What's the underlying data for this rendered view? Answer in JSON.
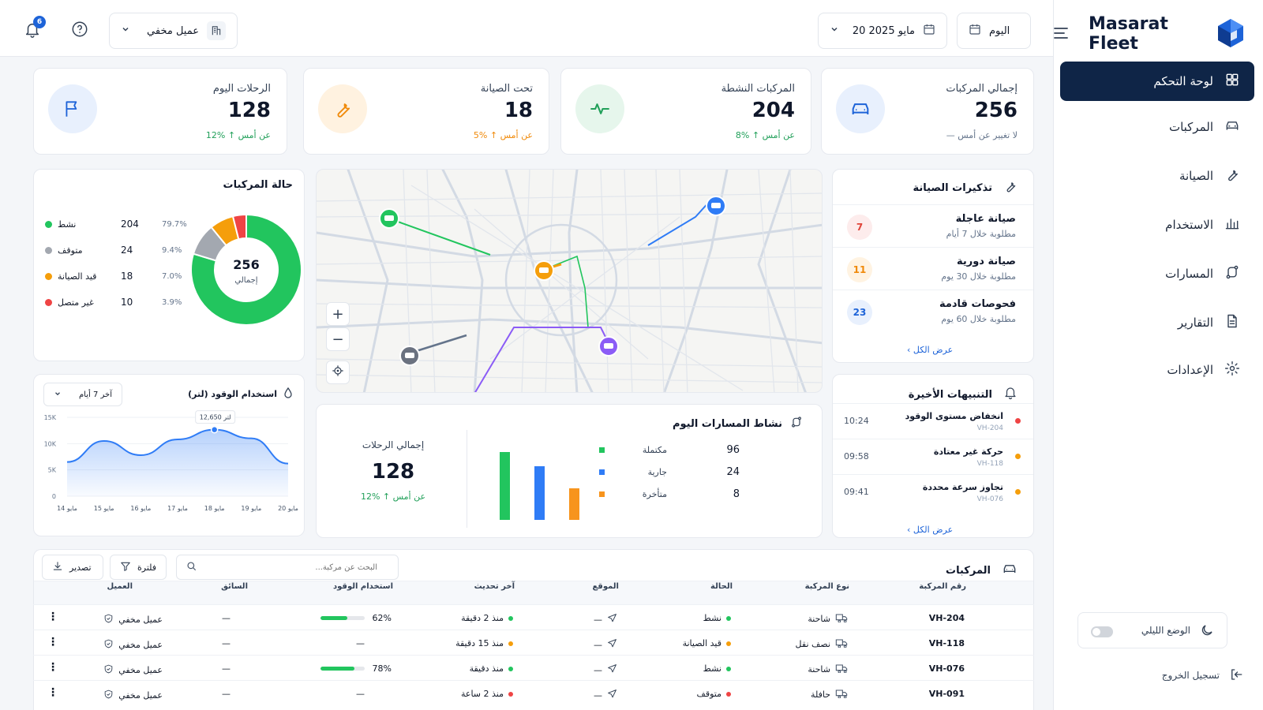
{
  "brand": {
    "name": "Masarat Fleet"
  },
  "sidebar": {
    "items": [
      {
        "label": "لوحة التحكم",
        "icon": "dashboard-icon"
      },
      {
        "label": "المركبات",
        "icon": "car-icon"
      },
      {
        "label": "الصيانة",
        "icon": "wrench-icon"
      },
      {
        "label": "الاستخدام",
        "icon": "bar-chart-icon"
      },
      {
        "label": "المسارات",
        "icon": "route-icon"
      },
      {
        "label": "التقارير",
        "icon": "document-icon"
      },
      {
        "label": "الإعدادات",
        "icon": "gear-icon"
      }
    ],
    "dark_mode_label": "الوضع الليلي",
    "logout_label": "تسجيل الخروج"
  },
  "topbar": {
    "period_label": "اليوم",
    "date_label": "20 مايو 2025",
    "client_label": "عميل مخفي",
    "notifications_count": "6"
  },
  "kpis": [
    {
      "label": "إجمالي المركبات",
      "value": "256",
      "delta": "— لا تغيير عن أمس",
      "tone": "gray"
    },
    {
      "label": "المركبات النشطة",
      "value": "204",
      "delta": "8% ↑ عن أمس",
      "tone": "green"
    },
    {
      "label": "تحت الصيانة",
      "value": "18",
      "delta": "5% ↑ عن أمس",
      "tone": "orange"
    },
    {
      "label": "الرحلات اليوم",
      "value": "128",
      "delta": "12% ↑ عن أمس",
      "tone": "green"
    }
  ],
  "vehicle_status": {
    "title": "حالة المركبات",
    "total_value": "256",
    "total_label": "إجمالي",
    "items": [
      {
        "label": "نشط",
        "count": "204",
        "pct": "79.7%",
        "value": 204,
        "color": "#22c55e"
      },
      {
        "label": "متوقف",
        "count": "24",
        "pct": "9.4%",
        "value": 24,
        "color": "#a3a8b0"
      },
      {
        "label": "قيد الصيانة",
        "count": "18",
        "pct": "7.0%",
        "value": 18,
        "color": "#f59e0b"
      },
      {
        "label": "غير متصل",
        "count": "10",
        "pct": "3.9%",
        "value": 10,
        "color": "#ef4444"
      }
    ]
  },
  "fuel": {
    "title": "استخدام الوقود (لتر)",
    "filter_label": "آخر 7 أيام",
    "tooltip": "12,650 لتر",
    "y_ticks": [
      "15K",
      "10K",
      "5K",
      "0"
    ],
    "x_ticks": [
      "14 مايو",
      "15 مايو",
      "16 مايو",
      "17 مايو",
      "18 مايو",
      "19 مايو",
      "20 مايو"
    ]
  },
  "chart_data": [
    {
      "type": "pie",
      "title": "حالة المركبات",
      "categories": [
        "نشط",
        "متوقف",
        "قيد الصيانة",
        "غير متصل"
      ],
      "values": [
        204,
        24,
        18,
        10
      ],
      "colors": [
        "#22c55e",
        "#a3a8b0",
        "#f59e0b",
        "#ef4444"
      ]
    },
    {
      "type": "area",
      "title": "استخدام الوقود (لتر)",
      "categories": [
        "14 مايو",
        "15 مايو",
        "16 مايو",
        "17 مايو",
        "18 مايو",
        "19 مايو",
        "20 مايو"
      ],
      "values": [
        6500,
        10500,
        7800,
        10800,
        12650,
        11000,
        6200
      ],
      "ylim": [
        0,
        15000
      ],
      "yticks": [
        0,
        5000,
        10000,
        15000
      ],
      "grid": true
    },
    {
      "type": "bar",
      "title": "نشاط المسارات اليوم",
      "categories": [
        "مكتملة",
        "جارية",
        "متأخرة"
      ],
      "values": [
        96,
        24,
        8
      ],
      "colors": [
        "#22c55e",
        "#2f7cf6",
        "#f7941d"
      ]
    }
  ],
  "route_activity": {
    "title": "نشاط المسارات اليوم",
    "total_label": "إجمالي الرحلات",
    "total_value": "128",
    "delta": "12% ↑ عن أمس",
    "items": [
      {
        "label": "مكتملة",
        "value": "96",
        "color": "#22c55e"
      },
      {
        "label": "جارية",
        "value": "24",
        "color": "#2f7cf6"
      },
      {
        "label": "متأخرة",
        "value": "8",
        "color": "#f7941d"
      }
    ]
  },
  "maintenance": {
    "title": "تذكيرات الصيانة",
    "items": [
      {
        "title": "صيانة عاجلة",
        "sub": "مطلوبة خلال 7 أيام",
        "count": "7",
        "bg": "#fdecec",
        "fg": "#e0453a"
      },
      {
        "title": "صيانة دورية",
        "sub": "مطلوبة خلال 30 يوم",
        "count": "11",
        "bg": "#fff3e2",
        "fg": "#f08a0a"
      },
      {
        "title": "فحوصات قادمة",
        "sub": "مطلوبة خلال 60 يوم",
        "count": "23",
        "bg": "#e8f0fd",
        "fg": "#1d63d8"
      }
    ],
    "view_all": "عرض الكل"
  },
  "alerts": {
    "title": "التنبيهات الأخيرة",
    "items": [
      {
        "title": "انخفاض مستوى الوقود",
        "vehicle": "VH-204",
        "time": "10:24",
        "color": "#ef4444"
      },
      {
        "title": "حركة غير معتادة",
        "vehicle": "VH-118",
        "time": "09:58",
        "color": "#f59e0b"
      },
      {
        "title": "تجاوز سرعة محددة",
        "vehicle": "VH-076",
        "time": "09:41",
        "color": "#f59e0b"
      }
    ],
    "view_all": "عرض الكل"
  },
  "vehicles_table": {
    "title": "المركبات",
    "search_placeholder": "البحث عن مركبة...",
    "filter_label": "فلترة",
    "export_label": "تصدير",
    "columns": [
      "رقم المركبة",
      "نوع المركبة",
      "الحالة",
      "الموقع",
      "آخر تحديث",
      "استخدام الوقود",
      "السائق",
      "العميل"
    ],
    "rows": [
      {
        "id": "VH-204",
        "type": "شاحنة",
        "status": "نشط",
        "status_color": "#22c55e",
        "location": "—",
        "updated": "منذ 2 دقيقة",
        "updated_color": "#22c55e",
        "fuel": "62%",
        "fuel_value": 62,
        "driver": "—",
        "client": "عميل مخفي"
      },
      {
        "id": "VH-118",
        "type": "نصف نقل",
        "status": "قيد الصيانة",
        "status_color": "#f59e0b",
        "location": "—",
        "updated": "منذ 15 دقيقة",
        "updated_color": "#f59e0b",
        "fuel": "—",
        "fuel_value": null,
        "driver": "—",
        "client": "عميل مخفي"
      },
      {
        "id": "VH-076",
        "type": "شاحنة",
        "status": "نشط",
        "status_color": "#22c55e",
        "location": "—",
        "updated": "منذ دقيقة",
        "updated_color": "#22c55e",
        "fuel": "78%",
        "fuel_value": 78,
        "driver": "—",
        "client": "عميل مخفي"
      },
      {
        "id": "VH-091",
        "type": "حافلة",
        "status": "متوقف",
        "status_color": "#ef4444",
        "location": "—",
        "updated": "منذ 2 ساعة",
        "updated_color": "#ef4444",
        "fuel": "—",
        "fuel_value": null,
        "driver": "—",
        "client": "عميل مخفي"
      }
    ]
  },
  "colors": {
    "primary": "#0f2547",
    "green": "#22c55e",
    "orange": "#f59e0b",
    "blue": "#2f7cf6",
    "red": "#ef4444",
    "purple": "#8b5cf6"
  }
}
